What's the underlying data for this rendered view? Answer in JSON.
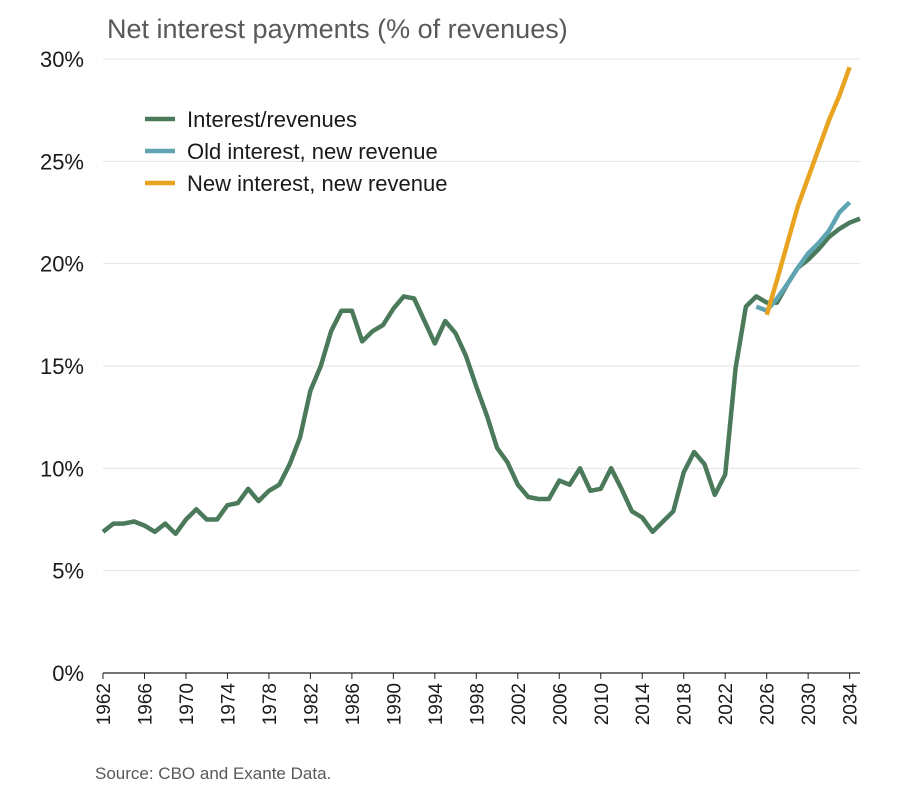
{
  "chart_data": {
    "type": "line",
    "title": "Net interest payments (% of revenues)",
    "source": "Source: CBO and Exante Data.",
    "xlabel": "",
    "ylabel": "",
    "xlim": [
      1962,
      2035
    ],
    "ylim": [
      0,
      30
    ],
    "y_ticks": [
      "0%",
      "5%",
      "10%",
      "15%",
      "20%",
      "25%",
      "30%"
    ],
    "y_tick_values": [
      0,
      5,
      10,
      15,
      20,
      25,
      30
    ],
    "x_ticks": [
      "1962",
      "1966",
      "1970",
      "1974",
      "1978",
      "1982",
      "1986",
      "1990",
      "1994",
      "1998",
      "2002",
      "2006",
      "2010",
      "2014",
      "2018",
      "2022",
      "2026",
      "2030",
      "2034"
    ],
    "x_tick_values": [
      1962,
      1966,
      1970,
      1974,
      1978,
      1982,
      1986,
      1990,
      1994,
      1998,
      2002,
      2006,
      2010,
      2014,
      2018,
      2022,
      2026,
      2030,
      2034
    ],
    "legend_position": "top-left",
    "grid": true,
    "series": [
      {
        "name": "Interest/revenues",
        "color": "#4a7a5a",
        "x": [
          1962,
          1963,
          1964,
          1965,
          1966,
          1967,
          1968,
          1969,
          1970,
          1971,
          1972,
          1973,
          1974,
          1975,
          1976,
          1977,
          1978,
          1979,
          1980,
          1981,
          1982,
          1983,
          1984,
          1985,
          1986,
          1987,
          1988,
          1989,
          1990,
          1991,
          1992,
          1993,
          1994,
          1995,
          1996,
          1997,
          1998,
          1999,
          2000,
          2001,
          2002,
          2003,
          2004,
          2005,
          2006,
          2007,
          2008,
          2009,
          2010,
          2011,
          2012,
          2013,
          2014,
          2015,
          2016,
          2017,
          2018,
          2019,
          2020,
          2021,
          2022,
          2023,
          2024,
          2025,
          2026,
          2027,
          2028,
          2029,
          2030,
          2031,
          2032,
          2033,
          2034,
          2035
        ],
        "values": [
          6.9,
          7.3,
          7.3,
          7.4,
          7.2,
          6.9,
          7.3,
          6.8,
          7.5,
          8.0,
          7.5,
          7.5,
          8.2,
          8.3,
          9.0,
          8.4,
          8.9,
          9.2,
          10.2,
          11.5,
          13.8,
          15.0,
          16.7,
          17.7,
          17.7,
          16.2,
          16.7,
          17.0,
          17.8,
          18.4,
          18.3,
          17.2,
          16.1,
          17.2,
          16.6,
          15.5,
          14.0,
          12.6,
          11.0,
          10.3,
          9.2,
          8.6,
          8.5,
          8.5,
          9.4,
          9.2,
          10.0,
          8.9,
          9.0,
          10.0,
          9.0,
          7.9,
          7.6,
          6.9,
          7.4,
          7.9,
          9.8,
          10.8,
          10.2,
          8.7,
          9.7,
          14.9,
          17.9,
          18.4,
          18.1,
          18.1,
          19.0,
          19.8,
          20.2,
          20.7,
          21.3,
          21.7,
          22.0,
          22.2
        ]
      },
      {
        "name": "Old interest, new revenue",
        "color": "#5fa4b2",
        "x": [
          2025,
          2026,
          2027,
          2028,
          2029,
          2030,
          2031,
          2032,
          2033,
          2034
        ],
        "values": [
          17.9,
          17.7,
          18.3,
          19.0,
          19.8,
          20.5,
          21.0,
          21.6,
          22.5,
          23.0
        ]
      },
      {
        "name": "New interest, new revenue",
        "color": "#e8a320",
        "x": [
          2026,
          2027,
          2028,
          2029,
          2030,
          2031,
          2032,
          2033,
          2034
        ],
        "values": [
          17.5,
          19.2,
          21.0,
          22.8,
          24.2,
          25.6,
          27.0,
          28.2,
          29.6
        ]
      }
    ]
  }
}
